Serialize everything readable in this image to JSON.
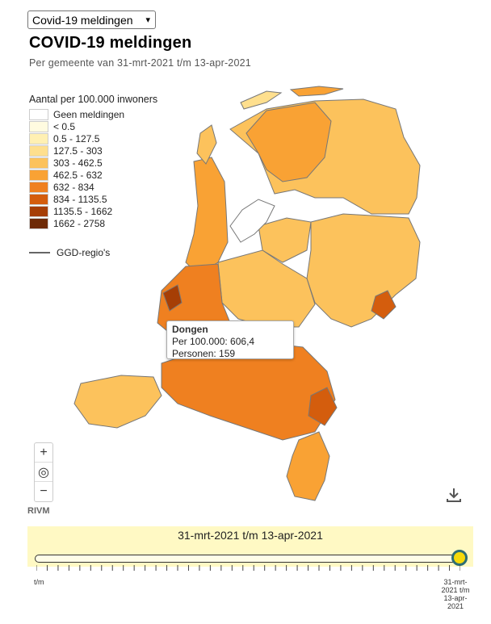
{
  "selector": {
    "value": "Covid-19 meldingen"
  },
  "header": {
    "title": "COVID-19 meldingen",
    "subtitle": "Per gemeente van 31-mrt-2021 t/m 13-apr-2021"
  },
  "legend": {
    "title": "Aantal per 100.000 inwoners",
    "items": [
      {
        "label": "Geen meldingen",
        "color": "#ffffff"
      },
      {
        "label": "< 0.5",
        "color": "#fffbe0"
      },
      {
        "label": "0.5 - 127.5",
        "color": "#fff0b3"
      },
      {
        "label": "127.5 - 303",
        "color": "#fedf8e"
      },
      {
        "label": "303 - 462.5",
        "color": "#fcc25c"
      },
      {
        "label": "462.5 - 632",
        "color": "#f9a234"
      },
      {
        "label": "632 - 834",
        "color": "#ef8020"
      },
      {
        "label": "834 - 1135.5",
        "color": "#d45d0d"
      },
      {
        "label": "1135.5 - 1662",
        "color": "#a63e05"
      },
      {
        "label": "1662 - 2758",
        "color": "#6e2a06"
      }
    ],
    "ggd_label": "GGD-regio's"
  },
  "tooltip": {
    "name": "Dongen",
    "per100k": "Per 100.000: 606,4",
    "persons": "Personen: 159"
  },
  "controls": {
    "zoom_in": "+",
    "locate": "◎",
    "zoom_out": "−",
    "icons": [
      "plus-icon",
      "target-icon",
      "minus-icon",
      "download-icon"
    ]
  },
  "credit": "RIVM",
  "timeline": {
    "label": "31-mrt-2021 t/m 13-apr-2021",
    "start_label": "t/m",
    "end_label": "31-mrt-\n2021 t/m\n13-apr-\n2021",
    "position": 1.0
  }
}
